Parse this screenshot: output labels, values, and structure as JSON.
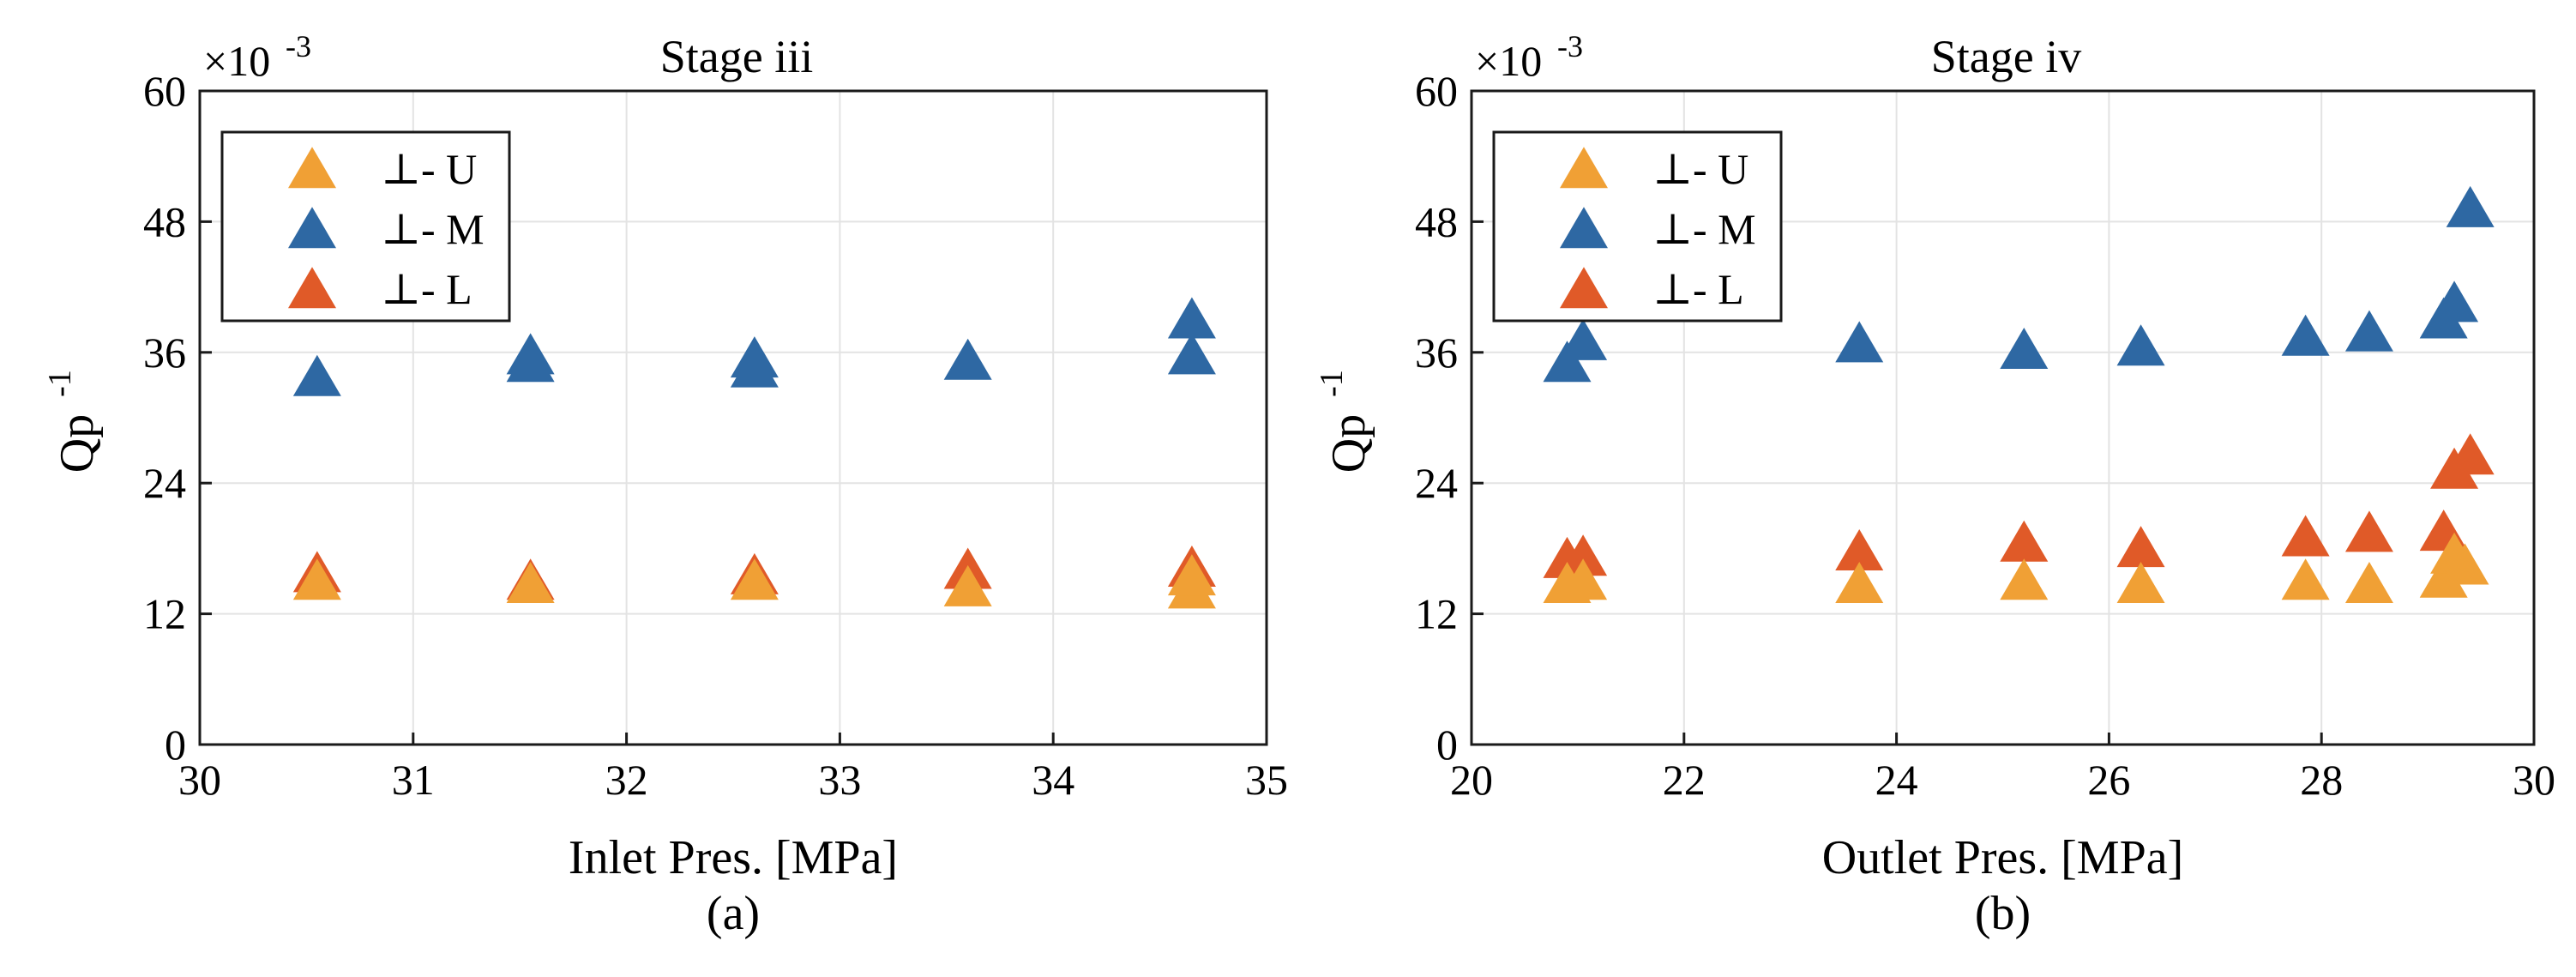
{
  "chart_data": [
    {
      "type": "scatter",
      "title": "Stage iii",
      "xlabel": "Inlet Pres. [MPa]",
      "ylabel": "Qp",
      "ylabel_sup": "-1",
      "exponent_label": "×10",
      "exponent_sup": "-3",
      "caption": "(a)",
      "xlim": [
        30,
        35
      ],
      "ylim": [
        0,
        60
      ],
      "xticks": [
        "30",
        "31",
        "32",
        "33",
        "34",
        "35"
      ],
      "yticks": [
        "0",
        "12",
        "24",
        "36",
        "48",
        "60"
      ],
      "grid": true,
      "legend_position": "top-left",
      "series": [
        {
          "name": "⊥- U",
          "color": "#f0a035",
          "x": [
            30.55,
            31.55,
            32.6,
            33.6,
            34.65,
            34.65
          ],
          "y": [
            14.8,
            14.5,
            14.8,
            14.2,
            14.0,
            15.2
          ]
        },
        {
          "name": "⊥- M",
          "color": "#2e68a3",
          "x": [
            30.55,
            31.55,
            31.55,
            32.6,
            32.6,
            33.6,
            34.65,
            34.65
          ],
          "y": [
            33.5,
            34.8,
            35.5,
            34.3,
            35.2,
            35.0,
            35.5,
            38.8
          ]
        },
        {
          "name": "⊥- L",
          "color": "#e05a28",
          "x": [
            30.55,
            31.55,
            32.6,
            33.6,
            34.65
          ],
          "y": [
            15.5,
            14.8,
            15.3,
            15.8,
            16.0
          ]
        }
      ]
    },
    {
      "type": "scatter",
      "title": "Stage iv",
      "xlabel": "Outlet Pres. [MPa]",
      "ylabel": "Qp",
      "ylabel_sup": "-1",
      "exponent_label": "×10",
      "exponent_sup": "-3",
      "caption": "(b)",
      "xlim": [
        20,
        30
      ],
      "ylim": [
        0,
        60
      ],
      "xticks": [
        "20",
        "22",
        "24",
        "26",
        "28",
        "30"
      ],
      "yticks": [
        "0",
        "12",
        "24",
        "36",
        "48",
        "60"
      ],
      "grid": true,
      "legend_position": "top-left",
      "series": [
        {
          "name": "⊥- U",
          "color": "#f0a035",
          "x": [
            20.9,
            21.05,
            23.65,
            25.2,
            26.3,
            27.85,
            28.45,
            29.15,
            29.25,
            29.35
          ],
          "y": [
            14.5,
            14.8,
            14.5,
            14.8,
            14.5,
            14.8,
            14.5,
            15.0,
            17.2,
            16.2
          ]
        },
        {
          "name": "⊥- M",
          "color": "#2e68a3",
          "x": [
            20.9,
            21.05,
            23.65,
            25.2,
            26.3,
            27.85,
            28.45,
            29.15,
            29.25,
            29.4
          ],
          "y": [
            34.8,
            36.8,
            36.6,
            36.0,
            36.3,
            37.2,
            37.6,
            38.8,
            40.3,
            49.0
          ]
        },
        {
          "name": "⊥- L",
          "color": "#e05a28",
          "x": [
            20.9,
            21.05,
            23.65,
            25.2,
            26.3,
            27.85,
            28.45,
            29.15,
            29.25,
            29.4
          ],
          "y": [
            16.8,
            17.0,
            17.5,
            18.3,
            17.8,
            18.8,
            19.2,
            19.3,
            25.0,
            26.3
          ]
        }
      ]
    }
  ]
}
